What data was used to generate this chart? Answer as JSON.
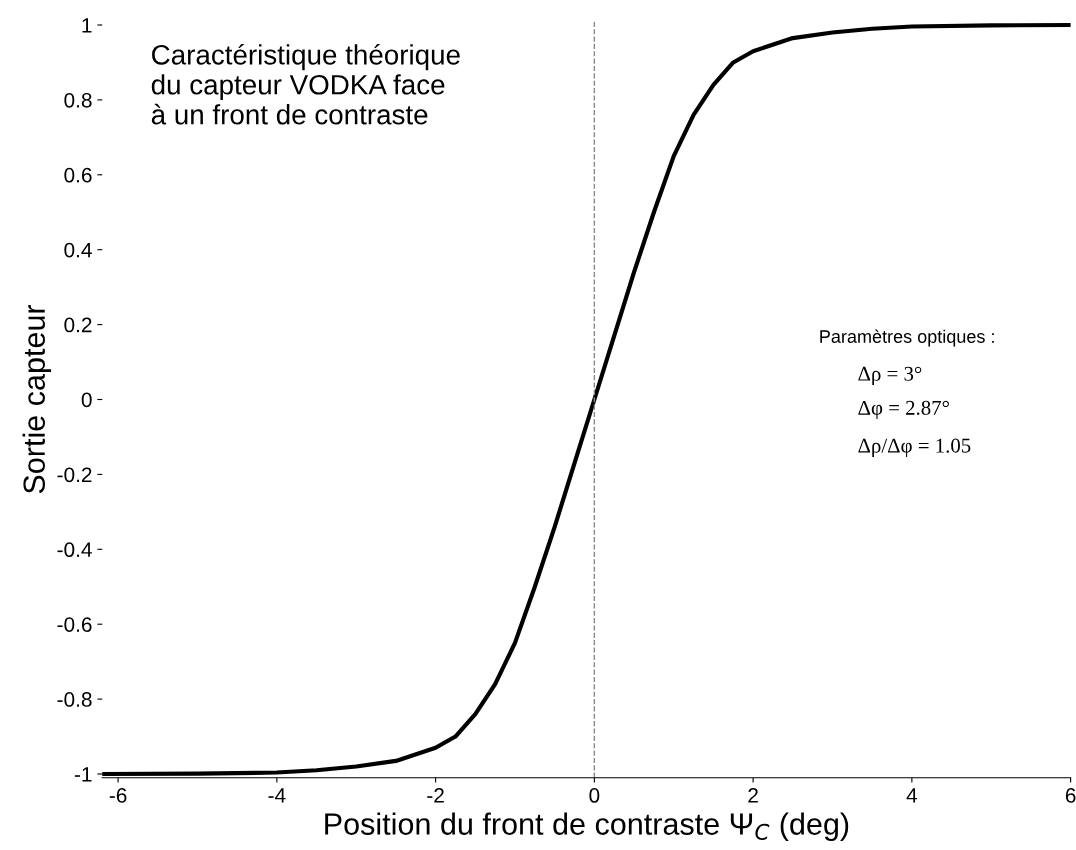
{
  "chart_data": {
    "type": "line",
    "title": "Caractéristique théorique\ndu capteur VODKA face\nà un front de contraste",
    "xlabel": "Position du front de contraste Ψ$_{C}$ (deg)",
    "ylabel": "Sortie capteur",
    "x": [
      -6.2,
      -5,
      -4,
      -3.5,
      -3,
      -2.5,
      -2,
      -1.75,
      -1.5,
      -1.25,
      -1,
      -0.75,
      -0.5,
      -0.25,
      0,
      0.25,
      0.5,
      0.75,
      1,
      1.25,
      1.5,
      1.75,
      2,
      2.5,
      3,
      3.5,
      4,
      5,
      6
    ],
    "series": [
      {
        "color": "#000000",
        "values": [
          -1,
          -0.999,
          -0.996,
          -0.99,
          -0.98,
          -0.965,
          -0.93,
          -0.9,
          -0.84,
          -0.76,
          -0.65,
          -0.5,
          -0.34,
          -0.17,
          0,
          0.17,
          0.34,
          0.5,
          0.65,
          0.76,
          0.84,
          0.9,
          0.93,
          0.965,
          0.98,
          0.99,
          0.996,
          0.999,
          1
        ]
      }
    ],
    "xlim": [
      -6.2,
      6
    ],
    "ylim": [
      -1.01,
      1.01
    ],
    "xticks": [
      -6,
      -4,
      -2,
      0,
      2,
      4,
      6
    ],
    "yticks": [
      -1,
      -0.8,
      -0.6,
      -0.4,
      -0.2,
      0,
      0.2,
      0.4,
      0.6,
      0.8,
      1
    ],
    "ref_lines": [
      {
        "axis": "x",
        "value": 0,
        "color": "#888888",
        "line_style": "dashed"
      }
    ],
    "annotations": [
      "Paramètres optiques :",
      "Δρ = 3°",
      "Δφ = 2.87°",
      "Δρ/Δφ = 1.05"
    ],
    "grid": false,
    "legend": false,
    "marker": "none",
    "line_style": "solid"
  }
}
